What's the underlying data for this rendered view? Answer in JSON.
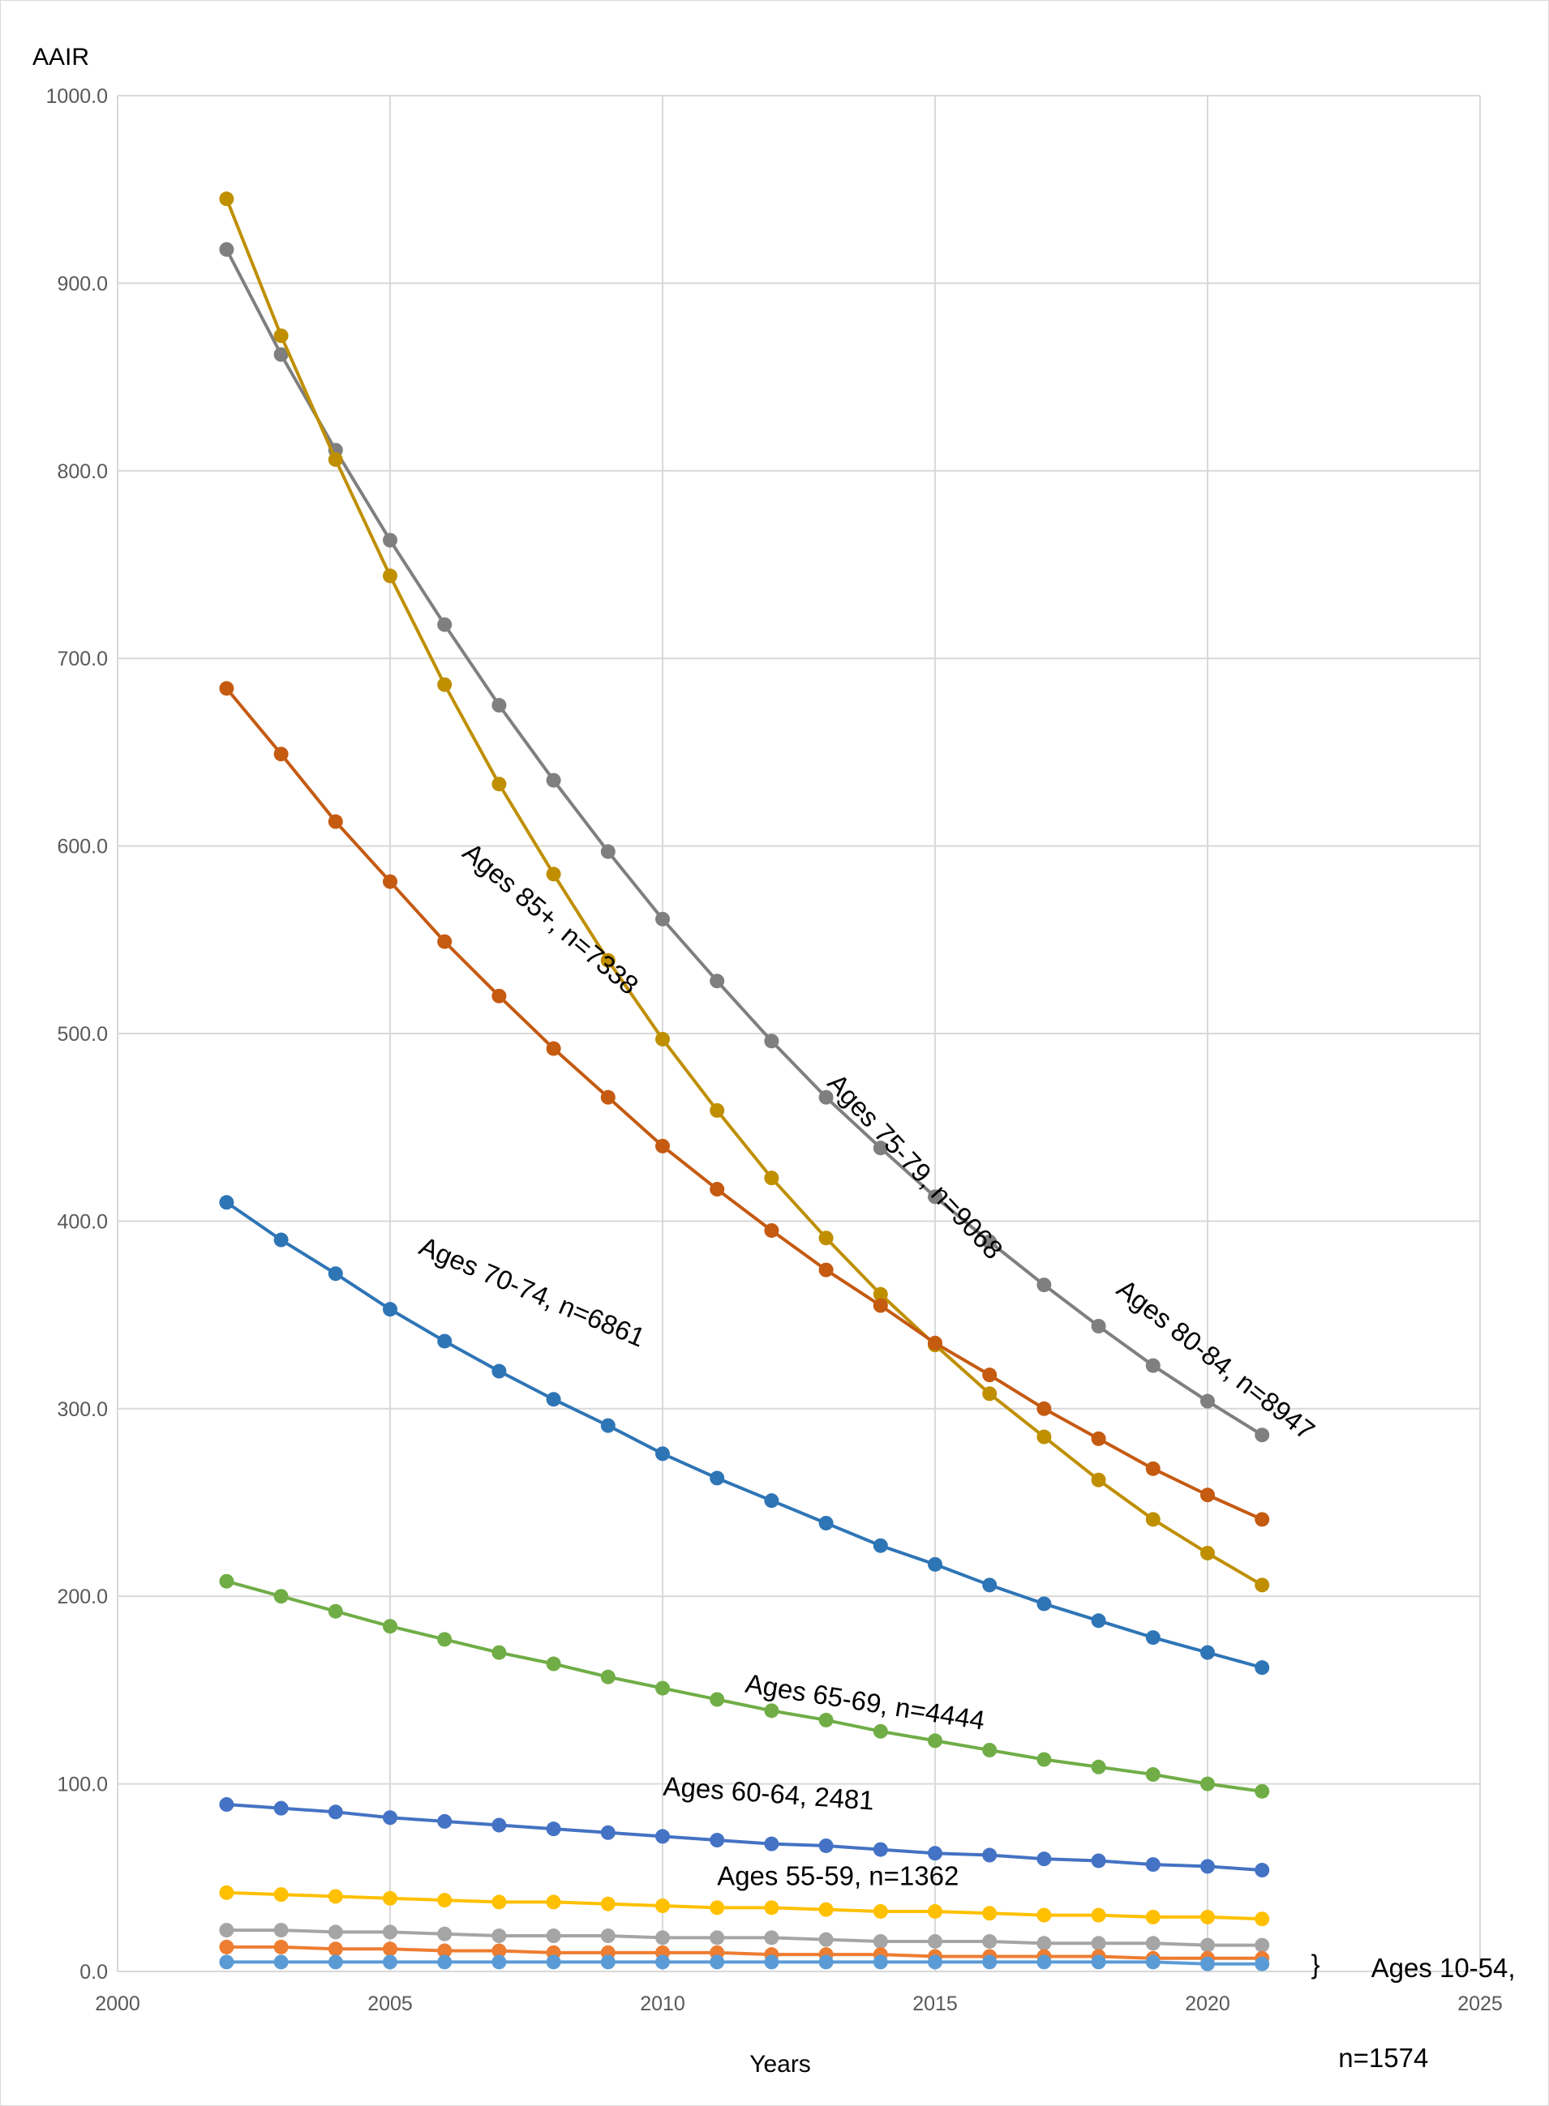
{
  "chart_data": {
    "type": "line",
    "title": "",
    "xlabel": "Years",
    "ylabel": "AAIR",
    "xlim": [
      2000,
      2025
    ],
    "ylim": [
      0,
      1000
    ],
    "grid": true,
    "legend": "none",
    "x_ticks": [
      "2000",
      "2005",
      "2010",
      "2015",
      "2020",
      "2025"
    ],
    "y_ticks": [
      "0.0",
      "100.0",
      "200.0",
      "300.0",
      "400.0",
      "500.0",
      "600.0",
      "700.0",
      "800.0",
      "900.0",
      "1000.0"
    ],
    "x": [
      2002,
      2003,
      2004,
      2005,
      2006,
      2007,
      2008,
      2009,
      2010,
      2011,
      2012,
      2013,
      2014,
      2015,
      2016,
      2017,
      2018,
      2019,
      2020,
      2021
    ],
    "series": [
      {
        "color": "#7F7F7F",
        "values": [
          918,
          862,
          811,
          763,
          718,
          675,
          635,
          597,
          561,
          528,
          496,
          466,
          439,
          413,
          389,
          366,
          344,
          323,
          304,
          286
        ]
      },
      {
        "color": "#BF8F00",
        "values": [
          945,
          872,
          806,
          744,
          686,
          633,
          585,
          539,
          497,
          459,
          423,
          391,
          361,
          334,
          308,
          285,
          262,
          241,
          223,
          206
        ]
      },
      {
        "color": "#C55A11",
        "values": [
          684,
          649,
          613,
          581,
          549,
          520,
          492,
          466,
          440,
          417,
          395,
          374,
          355,
          335,
          318,
          300,
          284,
          268,
          254,
          241
        ]
      },
      {
        "color": "#2E75B6",
        "values": [
          410,
          390,
          372,
          353,
          336,
          320,
          305,
          291,
          276,
          263,
          251,
          239,
          227,
          217,
          206,
          196,
          187,
          178,
          170,
          162
        ]
      },
      {
        "color": "#70AD47",
        "values": [
          208,
          200,
          192,
          184,
          177,
          170,
          164,
          157,
          151,
          145,
          139,
          134,
          128,
          123,
          118,
          113,
          109,
          105,
          100,
          96
        ]
      },
      {
        "color": "#4472C4",
        "values": [
          89,
          87,
          85,
          82,
          80,
          78,
          76,
          74,
          72,
          70,
          68,
          67,
          65,
          63,
          62,
          60,
          59,
          57,
          56,
          54
        ]
      },
      {
        "color": "#FFC000",
        "values": [
          42,
          41,
          40,
          39,
          38,
          37,
          37,
          36,
          35,
          34,
          34,
          33,
          32,
          32,
          31,
          30,
          30,
          29,
          29,
          28
        ]
      },
      {
        "color": "#A5A5A5",
        "values": [
          22,
          22,
          21,
          21,
          20,
          19,
          19,
          19,
          18,
          18,
          18,
          17,
          16,
          16,
          16,
          15,
          15,
          15,
          14,
          14
        ]
      },
      {
        "color": "#ED7D31",
        "values": [
          13,
          13,
          12,
          12,
          11,
          11,
          10,
          10,
          10,
          10,
          9,
          9,
          9,
          8,
          8,
          8,
          8,
          7,
          7,
          7
        ]
      },
      {
        "color": "#5B9BD5",
        "values": [
          5,
          5,
          5,
          5,
          5,
          5,
          5,
          5,
          5,
          5,
          5,
          5,
          5,
          5,
          5,
          5,
          5,
          5,
          4,
          4
        ]
      }
    ],
    "annotations": [
      {
        "text": "Ages 85+, n=7338",
        "x": 2006.3,
        "y": 595,
        "angle": 40
      },
      {
        "text": "Ages 75-79, n=9068",
        "x": 2013.0,
        "y": 473,
        "angle": 47
      },
      {
        "text": "Ages 80-84, n=8947",
        "x": 2018.3,
        "y": 362,
        "angle": 38
      },
      {
        "text": "Ages 70-74, n=6861",
        "x": 2005.5,
        "y": 383,
        "angle": 23
      },
      {
        "text": "Ages 65-69, n=4444",
        "x": 2011.5,
        "y": 149,
        "angle": 9
      },
      {
        "text": "Ages 60-64, 2481",
        "x": 2010.0,
        "y": 94,
        "angle": 4
      },
      {
        "text": "Ages 55-59, n=1362",
        "x": 2011.0,
        "y": 46,
        "angle": 0
      },
      {
        "text": "}",
        "x": 2021.9,
        "y": -1,
        "angle": 0
      },
      {
        "text": "Ages 10-54,",
        "x": 2023.0,
        "y": -3,
        "angle": 0
      },
      {
        "text": "n=1574",
        "x": 2022.4,
        "y": -51,
        "angle": 0
      }
    ]
  }
}
